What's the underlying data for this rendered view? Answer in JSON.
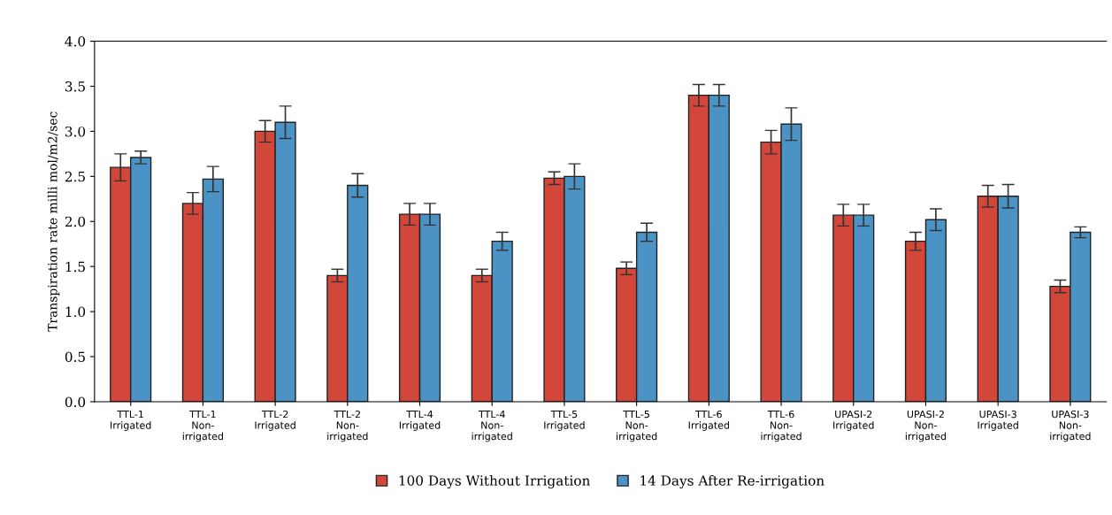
{
  "chart_data": {
    "type": "bar",
    "ylabel": "Transpiration rate milli mol/m2/sec",
    "categories": [
      "TTL-1\nIrrigated",
      "TTL-1\nNon-\nirrigated",
      "TTL-2\nIrrigated",
      "TTL-2\nNon-\nirrigated",
      "TTL-4\nIrrigated",
      "TTL-4\nNon-\nirrigated",
      "TTL-5\nIrrigated",
      "TTL-5\nNon-\nirrigated",
      "TTL-6\nIrrigated",
      "TTL-6\nNon-\nirrigated",
      "UPASI-2\nIrrigated",
      "UPASI-2\nNon-\nirrigated",
      "UPASI-3\nIrrigated",
      "UPASI-3\nNon-\nirrigated"
    ],
    "series": [
      {
        "name": "100 Days Without Irrigation",
        "color": "#d2473a",
        "values": [
          2.6,
          2.2,
          3.0,
          1.4,
          2.08,
          1.4,
          2.48,
          1.48,
          3.4,
          2.88,
          2.07,
          1.78,
          2.28,
          1.28
        ],
        "errors": [
          0.15,
          0.12,
          0.12,
          0.07,
          0.12,
          0.07,
          0.07,
          0.07,
          0.12,
          0.13,
          0.12,
          0.1,
          0.12,
          0.07
        ]
      },
      {
        "name": "14 Days After Re-irrigation",
        "color": "#4b93c4",
        "values": [
          2.71,
          2.47,
          3.1,
          2.4,
          2.08,
          1.78,
          2.5,
          1.88,
          3.4,
          3.08,
          2.07,
          2.02,
          2.28,
          1.88
        ],
        "errors": [
          0.07,
          0.14,
          0.18,
          0.13,
          0.12,
          0.1,
          0.14,
          0.1,
          0.12,
          0.18,
          0.12,
          0.12,
          0.13,
          0.06
        ]
      }
    ],
    "ylim": [
      0,
      4.0
    ],
    "yticks": [
      {
        "value": 0,
        "label": "0.0"
      },
      {
        "value": 0.5,
        "label": "0.5"
      },
      {
        "value": 1.0,
        "label": "1.0"
      },
      {
        "value": 1.5,
        "label": "1.5"
      },
      {
        "value": 2.0,
        "label": "2.0"
      },
      {
        "value": 2.5,
        "label": "2.5"
      },
      {
        "value": 3.0,
        "label": "3.0"
      },
      {
        "value": 3.5,
        "label": "3.5"
      },
      {
        "value": 4.0,
        "label": "4.0"
      }
    ],
    "grid": false,
    "legend": "bottom"
  }
}
